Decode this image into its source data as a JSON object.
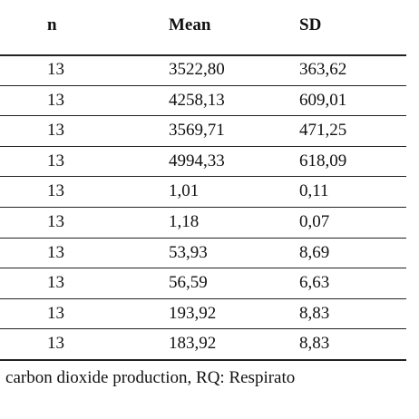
{
  "table": {
    "header": [
      "n",
      "Mean",
      "SD"
    ],
    "rows": [
      [
        "13",
        "3522,80",
        "363,62"
      ],
      [
        "13",
        "4258,13",
        "609,01"
      ],
      [
        "13",
        "3569,71",
        "471,25"
      ],
      [
        "13",
        "4994,33",
        "618,09"
      ],
      [
        "13",
        "1,01",
        "0,11"
      ],
      [
        "13",
        "1,18",
        "0,07"
      ],
      [
        "13",
        "53,93",
        "8,69"
      ],
      [
        "13",
        "56,59",
        "6,63"
      ],
      [
        "13",
        "193,92",
        "8,83"
      ],
      [
        "13",
        "183,92",
        "8,83"
      ]
    ],
    "footnote": ": carbon dioxide production, RQ: Respirato"
  }
}
